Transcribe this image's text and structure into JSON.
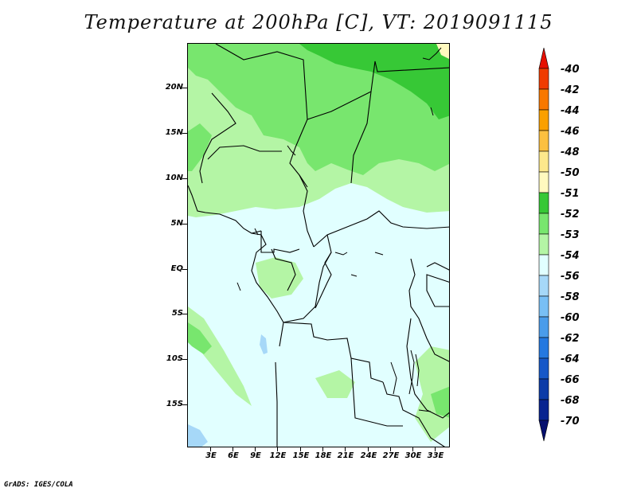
{
  "title": "Temperature at 200hPa [C], VT: 2019091115",
  "footer": "GrADS: IGES/COLA",
  "y_axis": [
    "20N",
    "15N",
    "10N",
    "5N",
    "EQ",
    "5S",
    "10S",
    "15S"
  ],
  "x_axis": [
    "3E",
    "6E",
    "9E",
    "12E",
    "15E",
    "18E",
    "21E",
    "24E",
    "27E",
    "30E",
    "33E"
  ],
  "legend": {
    "levels": [
      "-40",
      "-42",
      "-44",
      "-46",
      "-48",
      "-50",
      "-51",
      "-52",
      "-53",
      "-54",
      "-56",
      "-58",
      "-60",
      "-62",
      "-64",
      "-66",
      "-68",
      "-70"
    ],
    "colors": [
      "#e60f00",
      "#f03c00",
      "#f87800",
      "#faa000",
      "#fcc040",
      "#fde88c",
      "#fff9bf",
      "#37c836",
      "#78e66e",
      "#b4f5a5",
      "#e1ffff",
      "#a6d8f8",
      "#78bff5",
      "#4a9cea",
      "#2478e0",
      "#1658c8",
      "#0c3ca8",
      "#082490",
      "#06106e"
    ]
  },
  "colors": {
    "background_ice": "#e1ffff",
    "light_green": "#b4f5a5",
    "mid_green": "#78e66e",
    "dark_green": "#37c836",
    "light_blue": "#a6d8f8",
    "pale_yellow": "#fff9bf"
  }
}
